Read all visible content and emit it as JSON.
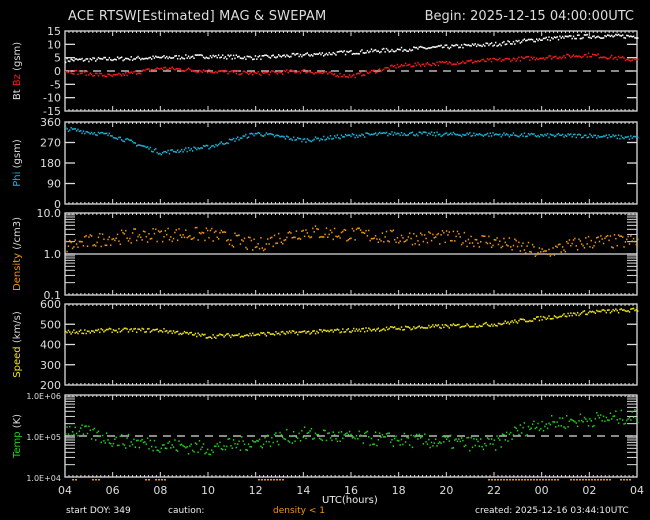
{
  "header": {
    "title": "ACE RTSW[Estimated] MAG & SWEPAM",
    "begin": "Begin: 2025-12-15 04:00:00UTC"
  },
  "footer": {
    "start_doy": "start DOY: 349",
    "caution_label": "caution:",
    "caution_value": "density < 1",
    "created": "created: 2025-12-16 03:44:10UTC",
    "xlabel": "UTC(hours)"
  },
  "colors": {
    "bt": "#ffffff",
    "bz": "#ff1a1a",
    "phi": "#1ab4d8",
    "density": "#f0960f",
    "speed": "#f0e614",
    "temp": "#1ed21e",
    "axis": "#dddddd"
  },
  "chart_data": [
    {
      "type": "scatter",
      "title": "Bt Bz (gsm)",
      "ylabel": "Bt Bz (gsm)",
      "ylim": [
        -15,
        15
      ],
      "yticks": [
        "15",
        "10",
        "5",
        "0",
        "-5",
        "-10",
        "-15"
      ],
      "reference_line": 0,
      "x": [
        "04",
        "06",
        "08",
        "10",
        "12",
        "14",
        "16",
        "18",
        "20",
        "22",
        "00",
        "02",
        "04"
      ],
      "series": [
        {
          "name": "Bt",
          "values": [
            4,
            4.5,
            5,
            5.5,
            5,
            6,
            7,
            8,
            9,
            10,
            12,
            13,
            13
          ]
        },
        {
          "name": "Bz",
          "values": [
            0,
            -2,
            1,
            0,
            -1,
            0,
            -2,
            2,
            3,
            4,
            5,
            6,
            4
          ]
        }
      ]
    },
    {
      "type": "scatter",
      "title": "Phi (gsm)",
      "ylabel": "Phi (gsm)",
      "ylim": [
        0,
        360
      ],
      "yticks": [
        "360",
        "270",
        "180",
        "90",
        "0"
      ],
      "x": [
        "04",
        "06",
        "08",
        "10",
        "12",
        "14",
        "16",
        "18",
        "20",
        "22",
        "00",
        "02",
        "04"
      ],
      "series": [
        {
          "name": "Phi",
          "values": [
            330,
            300,
            225,
            250,
            310,
            280,
            300,
            310,
            305,
            305,
            300,
            300,
            290
          ]
        }
      ]
    },
    {
      "type": "scatter",
      "title": "Density (/cm3)",
      "ylabel": "Density (/cm3)",
      "ylim": [
        0.1,
        10.0
      ],
      "yscale": "log",
      "yticks": [
        "10.0",
        "1.0",
        "0.1"
      ],
      "reference_line": 1.0,
      "x": [
        "04",
        "06",
        "08",
        "10",
        "12",
        "14",
        "16",
        "18",
        "20",
        "22",
        "00",
        "02",
        "04"
      ],
      "series": [
        {
          "name": "Density",
          "values": [
            1.5,
            2.5,
            3,
            3,
            1.5,
            3.5,
            3,
            2.5,
            2.5,
            2,
            1,
            2,
            2
          ]
        }
      ]
    },
    {
      "type": "scatter",
      "title": "Speed (km/s)",
      "ylabel": "Speed (km/s)",
      "ylim": [
        200,
        600
      ],
      "yticks": [
        "600",
        "500",
        "400",
        "300",
        "200"
      ],
      "x": [
        "04",
        "06",
        "08",
        "10",
        "12",
        "14",
        "16",
        "18",
        "20",
        "22",
        "00",
        "02",
        "04"
      ],
      "series": [
        {
          "name": "Speed",
          "values": [
            460,
            470,
            470,
            440,
            450,
            460,
            470,
            480,
            490,
            500,
            530,
            560,
            570
          ]
        }
      ]
    },
    {
      "type": "scatter",
      "title": "Temp (K)",
      "ylabel": "Temp (K)",
      "ylim": [
        10000,
        1000000
      ],
      "yscale": "log",
      "yticks": [
        "1.0E+06",
        "1.0E+05",
        "1.0E+04"
      ],
      "reference_line": 100000,
      "x": [
        "04",
        "06",
        "08",
        "10",
        "12",
        "14",
        "16",
        "18",
        "20",
        "22",
        "00",
        "02",
        "04"
      ],
      "series": [
        {
          "name": "Temp",
          "values": [
            150000,
            80000,
            60000,
            50000,
            70000,
            110000,
            90000,
            80000,
            70000,
            60000,
            200000,
            250000,
            300000
          ]
        }
      ]
    }
  ],
  "xaxis": {
    "ticks": [
      "04",
      "06",
      "08",
      "10",
      "12",
      "14",
      "16",
      "18",
      "20",
      "22",
      "00",
      "02",
      "04"
    ]
  },
  "panels": [
    {
      "label_parts": [
        "Bt",
        "Bz",
        "(gsm)"
      ],
      "yticks": [
        "15",
        "10",
        "5",
        "0",
        "-5",
        "-10",
        "-15"
      ]
    },
    {
      "label_parts": [
        "Phi",
        "(gsm)"
      ],
      "yticks": [
        "360",
        "270",
        "180",
        "90",
        "0"
      ]
    },
    {
      "label_parts": [
        "Density",
        "(/cm3)"
      ],
      "yticks": [
        "10.0",
        "1.0",
        "0.1"
      ]
    },
    {
      "label_parts": [
        "Speed",
        "(km/s)"
      ],
      "yticks": [
        "600",
        "500",
        "400",
        "300",
        "200"
      ]
    },
    {
      "label_parts": [
        "Temp",
        "(K)"
      ],
      "yticks": [
        "1.0E+06",
        "1.0E+05",
        "1.0E+04"
      ]
    }
  ]
}
